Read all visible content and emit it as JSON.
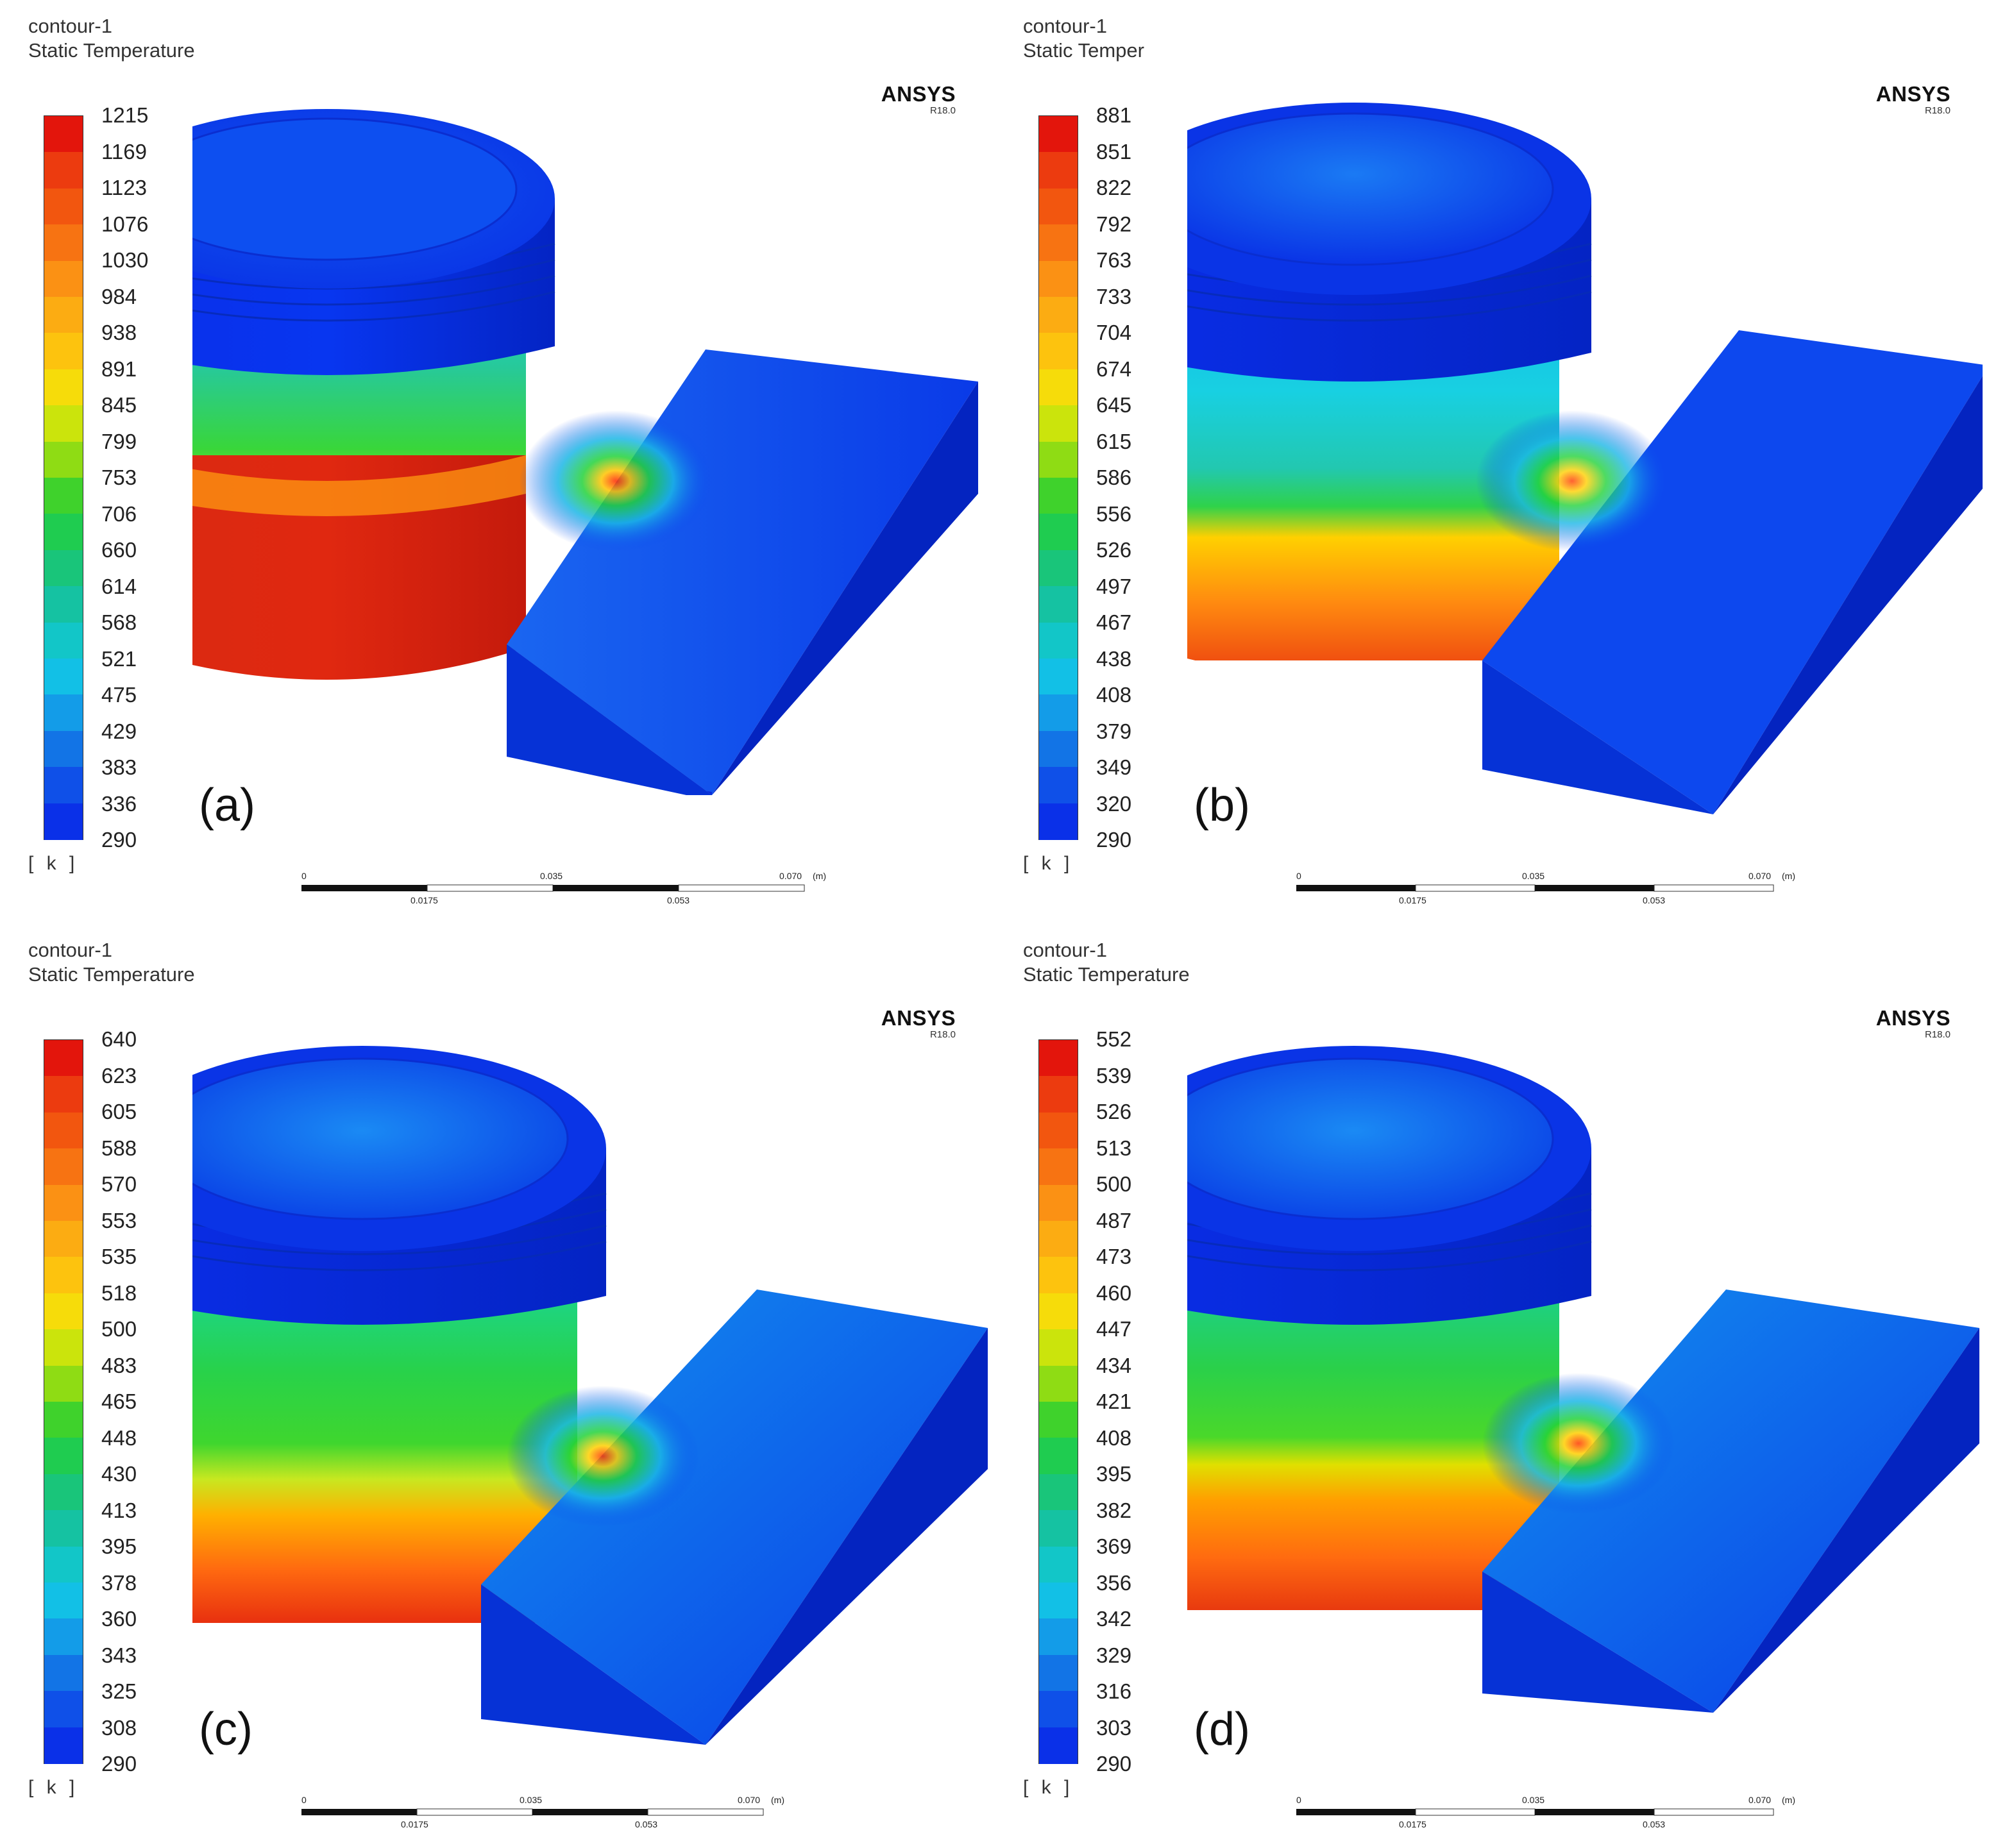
{
  "panels": [
    {
      "id": "a",
      "contour": "contour-1",
      "variable": "Static Temperature",
      "brand": "ANSYS",
      "version": "R18.0",
      "unit": "[ k ]",
      "label": "(a)",
      "legend": [
        "1215",
        "1169",
        "1123",
        "1076",
        "1030",
        "984",
        "938",
        "891",
        "845",
        "799",
        "753",
        "706",
        "660",
        "614",
        "568",
        "521",
        "475",
        "429",
        "383",
        "336",
        "290"
      ],
      "scale": {
        "t0": "0",
        "t1": "0.035",
        "t2": "0.070",
        "unit": "(m)",
        "b1": "0.0175",
        "b2": "0.053"
      }
    },
    {
      "id": "b",
      "contour": "contour-1",
      "variable": "Static Temper",
      "brand": "ANSYS",
      "version": "R18.0",
      "unit": "[ k ]",
      "label": "(b)",
      "legend": [
        "881",
        "851",
        "822",
        "792",
        "763",
        "733",
        "704",
        "674",
        "645",
        "615",
        "586",
        "556",
        "526",
        "497",
        "467",
        "438",
        "408",
        "379",
        "349",
        "320",
        "290"
      ],
      "scale": {
        "t0": "0",
        "t1": "0.035",
        "t2": "0.070",
        "unit": "(m)",
        "b1": "0.0175",
        "b2": "0.053"
      }
    },
    {
      "id": "c",
      "contour": "contour-1",
      "variable": "Static Temperature",
      "brand": "ANSYS",
      "version": "R18.0",
      "unit": "[ k ]",
      "label": "(c)",
      "legend": [
        "640",
        "623",
        "605",
        "588",
        "570",
        "553",
        "535",
        "518",
        "500",
        "483",
        "465",
        "448",
        "430",
        "413",
        "395",
        "378",
        "360",
        "343",
        "325",
        "308",
        "290"
      ],
      "scale": {
        "t0": "0",
        "t1": "0.035",
        "t2": "0.070",
        "unit": "(m)",
        "b1": "0.0175",
        "b2": "0.053"
      }
    },
    {
      "id": "d",
      "contour": "contour-1",
      "variable": "Static Temperature",
      "brand": "ANSYS",
      "version": "R18.0",
      "unit": "[ k ]",
      "label": "(d)",
      "legend": [
        "552",
        "539",
        "526",
        "513",
        "500",
        "487",
        "473",
        "460",
        "447",
        "434",
        "421",
        "408",
        "395",
        "382",
        "369",
        "356",
        "342",
        "329",
        "316",
        "303",
        "290"
      ],
      "scale": {
        "t0": "0",
        "t1": "0.035",
        "t2": "0.070",
        "unit": "(m)",
        "b1": "0.0175",
        "b2": "0.053"
      }
    }
  ]
}
